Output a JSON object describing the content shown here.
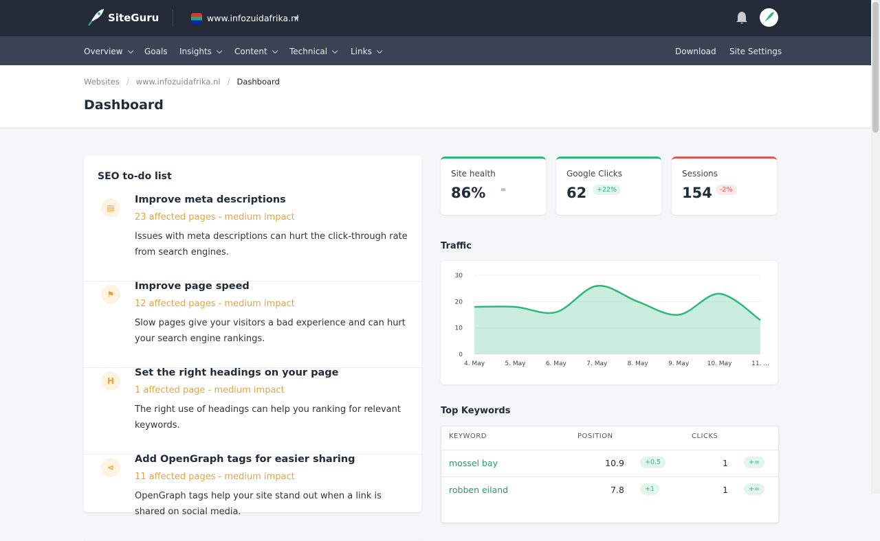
{
  "brand": "SiteGuru",
  "site": "www.infozuidafrika.nl",
  "nav": [
    "Overview",
    "Goals",
    "Insights",
    "Content",
    "Technical",
    "Links"
  ],
  "nav_right": [
    "Download",
    "Site Settings"
  ],
  "breadcrumb": [
    "Websites",
    "www.infozuidafrika.nl",
    "Dashboard"
  ],
  "page_title": "Dashboard",
  "todo": {
    "title": "SEO to-do list",
    "items": [
      {
        "title": "Improve meta descriptions",
        "impact": "23 affected pages - medium impact",
        "description": "Issues with meta descriptions can hurt the click-through rate from search engines."
      },
      {
        "title": "Improve page speed",
        "impact": "12 affected pages - medium impact",
        "description": "Slow pages give your visitors a bad experience and can hurt your search engine rankings."
      },
      {
        "title": "Set the right headings on your page",
        "impact": "1 affected page - medium impact",
        "description": "The right use of headings can help you ranking for relevant keywords."
      },
      {
        "title": "Add OpenGraph tags for easier sharing",
        "impact": "11 affected pages - medium impact",
        "description": "OpenGraph tags help your site stand out when a link is shared on social media."
      }
    ]
  },
  "metrics": [
    {
      "label": "Site health",
      "value": "86%",
      "change": "="
    },
    {
      "label": "Google Clicks",
      "value": "62",
      "change": "+22%"
    },
    {
      "label": "Sessions",
      "value": "154",
      "change": "-2%"
    }
  ],
  "traffic": {
    "title": "Traffic",
    "categories": [
      "4. May",
      "5. May",
      "6. May",
      "7. May",
      "8. May",
      "9. May",
      "10. May",
      "11. ..."
    ],
    "values": [
      18,
      18,
      16,
      26,
      20,
      15,
      23,
      13
    ],
    "ylim": [
      0,
      30
    ],
    "yticks": [
      0,
      10,
      20,
      30
    ],
    "color": "#2fb67c"
  },
  "keywords": {
    "title": "Top Keywords",
    "columns": [
      "KEYWORD",
      "POSITION",
      "CLICKS"
    ],
    "rows": [
      [
        "mossel bay",
        "10.9",
        "+0.5",
        "1",
        "+∞"
      ],
      [
        "robben eiland",
        "7.8",
        "+1",
        "1",
        "+∞"
      ]
    ]
  }
}
